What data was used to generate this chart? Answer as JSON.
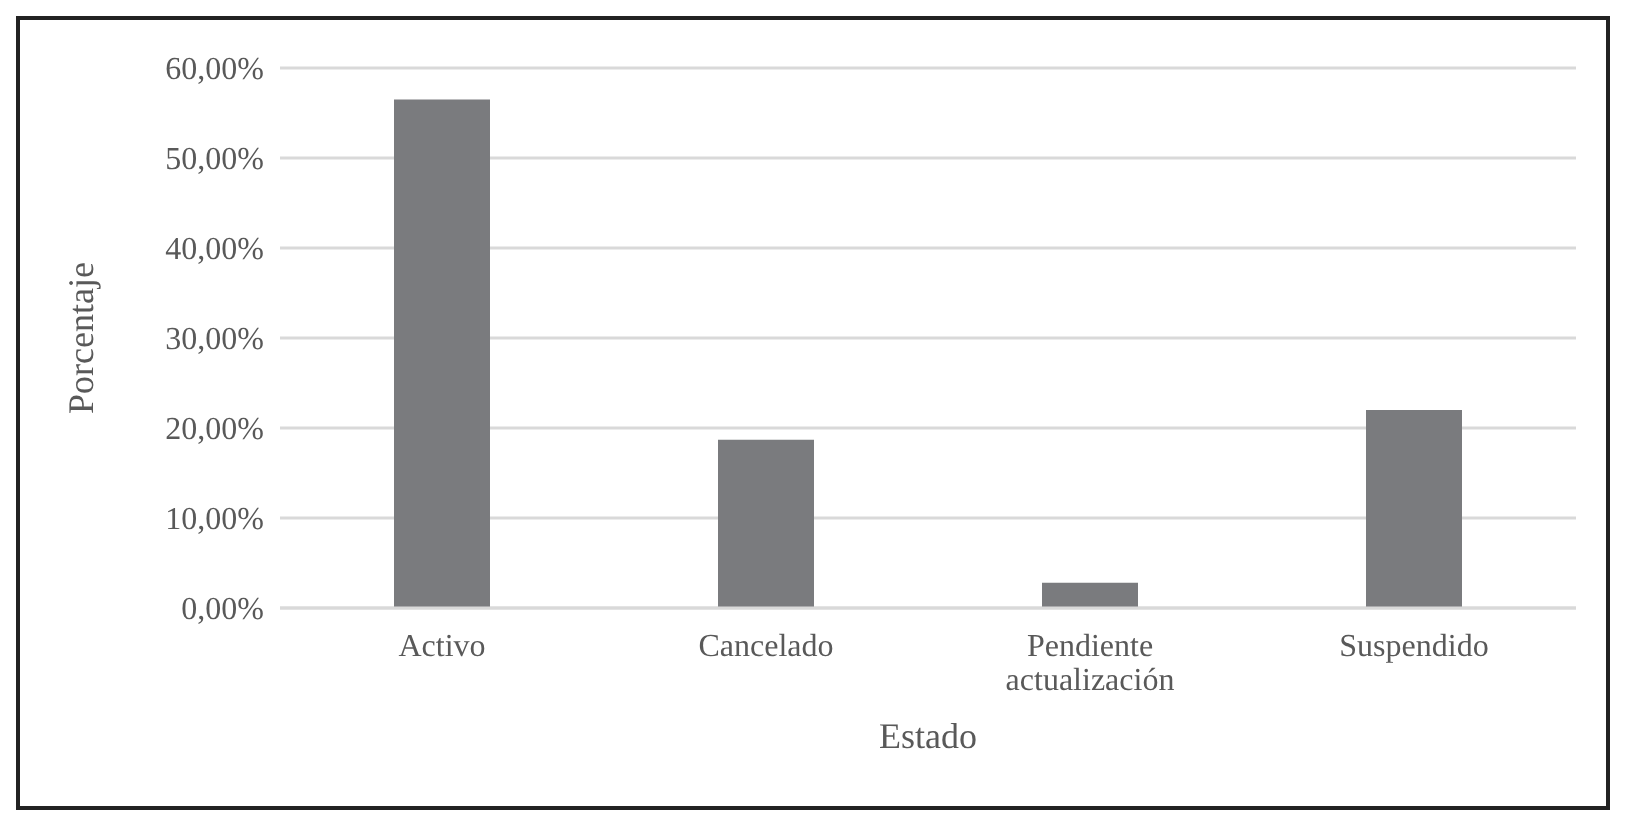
{
  "chart_data": {
    "type": "bar",
    "xlabel": "Estado",
    "ylabel": "Porcentaje",
    "categories": [
      "Activo",
      "Cancelado",
      "Pendiente actualización",
      "Suspendido"
    ],
    "values": [
      56.5,
      18.7,
      2.8,
      22.0
    ],
    "color": "#7a7b7e",
    "ylim": [
      0,
      60
    ],
    "yticks": [
      {
        "value": 0,
        "label": "0,00%"
      },
      {
        "value": 10,
        "label": "10,00%"
      },
      {
        "value": 20,
        "label": "20,00%"
      },
      {
        "value": 30,
        "label": "30,00%"
      },
      {
        "value": 40,
        "label": "40,00%"
      },
      {
        "value": 50,
        "label": "50,00%"
      },
      {
        "value": 60,
        "label": "60,00%"
      }
    ],
    "grid": "y",
    "legend": false
  }
}
